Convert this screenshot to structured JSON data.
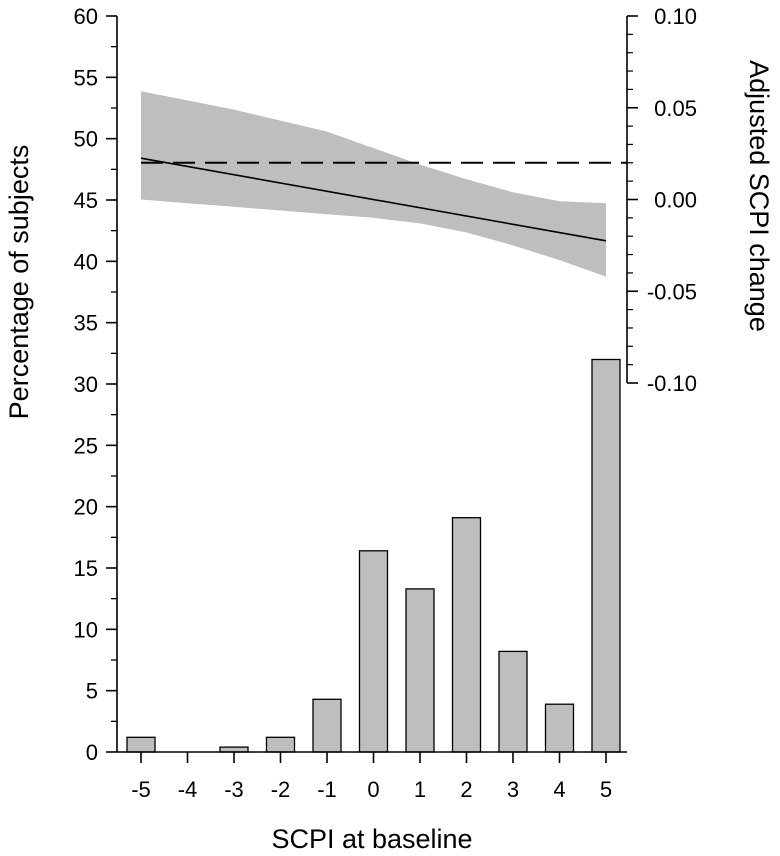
{
  "chart_data": [
    {
      "type": "bar",
      "xlabel": "SCPI at baseline",
      "ylabel": "Percentage of subjects",
      "ylim": [
        0,
        60
      ],
      "categories": [
        "-5",
        "-4",
        "-3",
        "-2",
        "-1",
        "0",
        "1",
        "2",
        "3",
        "4",
        "5"
      ],
      "values": [
        1.2,
        0,
        0.4,
        1.2,
        4.3,
        16.4,
        13.3,
        19.1,
        8.2,
        3.9,
        32.0
      ],
      "y_tick_labels": [
        "0",
        "5",
        "10",
        "15",
        "20",
        "25",
        "30",
        "35",
        "40",
        "45",
        "50",
        "55",
        "60"
      ],
      "bar_color": "#bebebe"
    },
    {
      "type": "line",
      "ylabel": "Adjusted SCPI change",
      "ylim": [
        -0.1,
        0.1
      ],
      "y_tick_labels": [
        "-0.10",
        "-0.05",
        "0.00",
        "0.05",
        "0.10"
      ],
      "x": [
        -5,
        5
      ],
      "series": [
        {
          "values": [
            0.0225,
            -0.0225
          ]
        }
      ],
      "band": {
        "x": [
          -5,
          -4,
          -3,
          -2,
          -1,
          0,
          1,
          2,
          3,
          4,
          5
        ],
        "lower": [
          0.0,
          -0.002,
          -0.004,
          -0.006,
          -0.008,
          -0.01,
          -0.013,
          -0.018,
          -0.025,
          -0.033,
          -0.042
        ],
        "upper": [
          0.059,
          0.054,
          0.049,
          0.043,
          0.037,
          0.028,
          0.019,
          0.011,
          0.004,
          -0.001,
          -0.002
        ]
      },
      "reference_line": {
        "value": 0.02,
        "style": "dashed"
      },
      "band_color": "#bebebe"
    }
  ]
}
